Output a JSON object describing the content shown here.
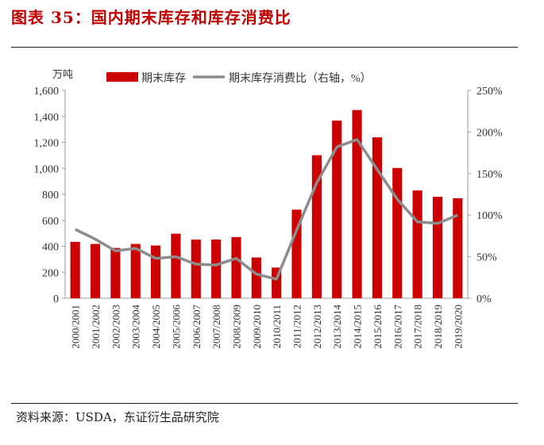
{
  "title": "图表 35：国内期末库存和库存消费比",
  "source": "资料来源：USDA，东证衍生品研究院",
  "chart_data": {
    "type": "bar+line",
    "left_unit": "万吨",
    "categories": [
      "2000/2001",
      "2001/2002",
      "2002/2003",
      "2003/2004",
      "2004/2005",
      "2005/2006",
      "2006/2007",
      "2007/2008",
      "2008/2009",
      "2009/2010",
      "2010/2011",
      "2011/2012",
      "2012/2013",
      "2013/2014",
      "2014/2015",
      "2015/2016",
      "2016/2017",
      "2017/2018",
      "2018/2019",
      "2019/2020"
    ],
    "series": [
      {
        "name": "期末库存",
        "type": "bar",
        "axis": "left",
        "color": "#cc0000",
        "values": [
          434,
          418,
          387,
          418,
          406,
          497,
          452,
          452,
          471,
          314,
          236,
          682,
          1101,
          1368,
          1449,
          1239,
          1003,
          830,
          781,
          770
        ]
      },
      {
        "name": "期末库存消费比（右轴，%）",
        "type": "line",
        "axis": "right",
        "color": "#8c8c8c",
        "values": [
          83,
          71,
          57,
          60,
          48,
          50,
          41,
          40,
          48,
          29,
          23,
          82,
          139,
          182,
          191,
          155,
          119,
          92,
          90,
          100
        ]
      }
    ],
    "left_ylim": [
      0,
      1600
    ],
    "left_ticks": [
      "0",
      "200",
      "400",
      "600",
      "800",
      "1,000",
      "1,200",
      "1,400",
      "1,600"
    ],
    "right_ylim": [
      0,
      250
    ],
    "right_ticks": [
      "0%",
      "50%",
      "100%",
      "150%",
      "200%",
      "250%"
    ],
    "legend_position": "top",
    "grid": false
  }
}
